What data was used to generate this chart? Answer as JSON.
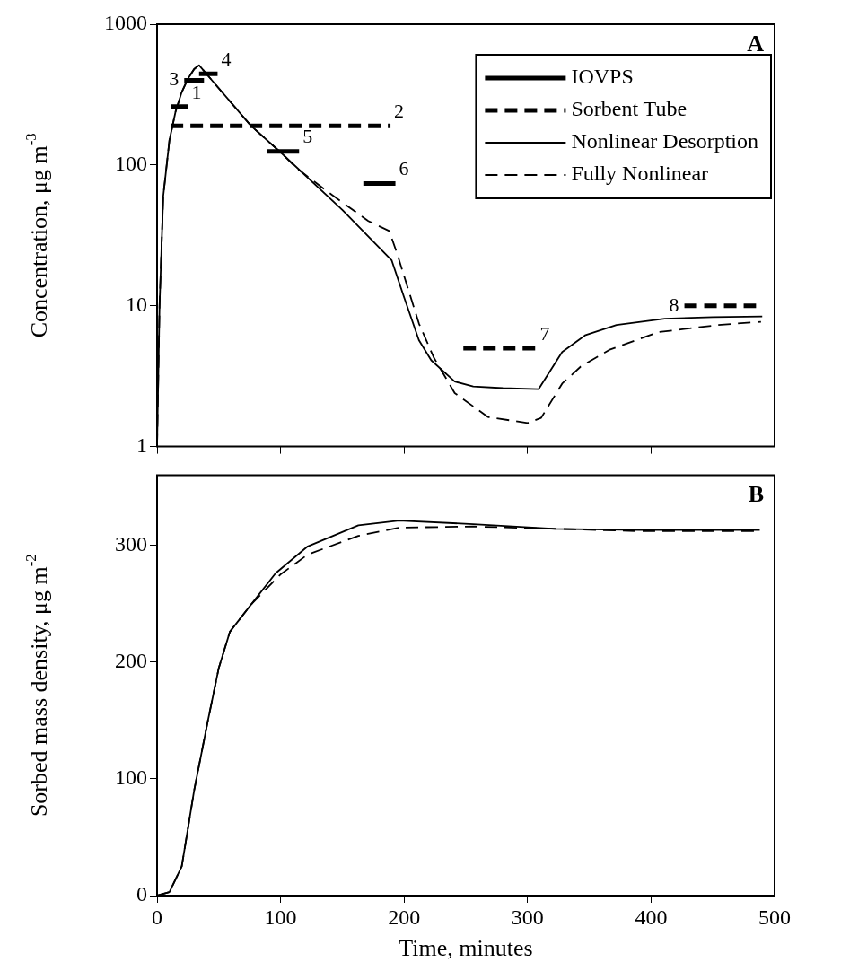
{
  "chart_data": [
    {
      "type": "line",
      "ylabel": "Concentration, μg m$^{-3}$",
      "log": "y",
      "xlim": [
        0,
        500
      ],
      "xticks": [
        0,
        100,
        200,
        300,
        400,
        500
      ],
      "ylim": [
        1,
        1000
      ],
      "yticks": [
        1,
        10,
        100,
        1000
      ],
      "tick_labels": "y",
      "grid": false,
      "legend": "top right",
      "marker": "none",
      "annotations": [
        "A",
        {
          "text": "1",
          "x": 25,
          "y": 260
        },
        {
          "text": "2",
          "x": 189,
          "y": 190
        },
        {
          "text": "3",
          "x": 22,
          "y": 400
        },
        {
          "text": "4",
          "x": 49,
          "y": 445
        },
        {
          "text": "5",
          "x": 115,
          "y": 125
        },
        {
          "text": "6",
          "x": 193,
          "y": 74
        },
        {
          "text": "7",
          "x": 307,
          "y": 5
        },
        {
          "text": "8",
          "x": 427,
          "y": 10
        }
      ],
      "series": [
        {
          "name": "IOVPS",
          "color": "#000000",
          "line_style": "solid",
          "x": [
            11,
            25,
            null,
            22,
            38,
            null,
            34,
            49,
            null,
            89,
            115,
            null,
            167,
            193
          ],
          "values": [
            260,
            260,
            null,
            400,
            400,
            null,
            445,
            445,
            null,
            125,
            125,
            null,
            74,
            74
          ]
        },
        {
          "name": "Sorbent Tube",
          "color": "#000000",
          "line_style": "dashed",
          "x": [
            11,
            189,
            null,
            248,
            307,
            null,
            427,
            485
          ],
          "values": [
            190,
            190,
            null,
            5,
            5,
            null,
            10,
            10
          ]
        },
        {
          "name": "Nonlinear Desorption",
          "color": "#000000",
          "line_style": "solid",
          "x": [
            0,
            2,
            5,
            10,
            15,
            20,
            25,
            30,
            34,
            41,
            76,
            100,
            150,
            190,
            200,
            212,
            222,
            241,
            256,
            280,
            309,
            328,
            347,
            372,
            411,
            450,
            490
          ],
          "values": [
            1,
            10,
            60,
            150,
            240,
            330,
            410,
            480,
            512,
            433,
            190,
            123,
            48,
            21,
            11.5,
            5.7,
            4.1,
            2.9,
            2.67,
            2.6,
            2.56,
            4.7,
            6.2,
            7.3,
            8.1,
            8.3,
            8.4
          ]
        },
        {
          "name": "Fully Nonlinear",
          "color": "#000000",
          "line_style": "dashed",
          "x": [
            0,
            2,
            5,
            10,
            15,
            20,
            25,
            30,
            34,
            41,
            76,
            100,
            113,
            142,
            171,
            188,
            194,
            212,
            224,
            241,
            268,
            300,
            311,
            328,
            343,
            367,
            406,
            454,
            489
          ],
          "values": [
            1,
            10,
            60,
            150,
            240,
            330,
            410,
            480,
            512,
            433,
            190,
            123,
            95,
            61,
            40,
            34,
            24,
            7.5,
            4.3,
            2.4,
            1.62,
            1.47,
            1.6,
            2.8,
            3.7,
            4.9,
            6.5,
            7.3,
            7.7
          ]
        }
      ]
    },
    {
      "type": "line",
      "xlabel": "Time, minutes",
      "ylabel": "Sorbed mass density, μg m$^{-2}$",
      "xlim": [
        0,
        500
      ],
      "xticks": [
        0,
        100,
        200,
        300,
        400,
        500
      ],
      "ylim": [
        0,
        360
      ],
      "yticks": [
        0,
        100,
        200,
        300
      ],
      "grid": false,
      "legend": false,
      "marker": "none",
      "annotations": [
        "B"
      ],
      "series": [
        {
          "color": "#000000",
          "line_style": "solid",
          "x": [
            0,
            10,
            20,
            30,
            41,
            50,
            59,
            76,
            96,
            122,
            163,
            196,
            256,
            323,
            390,
            488
          ],
          "values": [
            0,
            3,
            25,
            90,
            149,
            195,
            226,
            249,
            276,
            299,
            317,
            321,
            318,
            314,
            313,
            313
          ]
        },
        {
          "color": "#000000",
          "line_style": "dashed",
          "x": [
            0,
            10,
            20,
            30,
            41,
            50,
            59,
            76,
            100,
            122,
            163,
            196,
            256,
            323,
            390,
            488
          ],
          "values": [
            0,
            3,
            25,
            90,
            149,
            195,
            226,
            249,
            275,
            292,
            308,
            315,
            316,
            314,
            312,
            312
          ]
        }
      ]
    }
  ]
}
